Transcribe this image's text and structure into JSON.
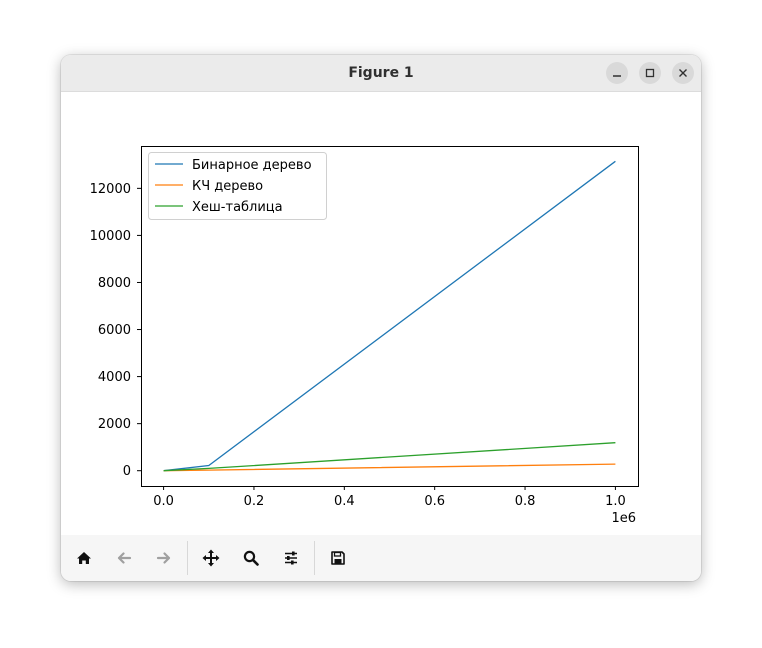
{
  "window": {
    "title": "Figure 1"
  },
  "toolbar": {
    "buttons": [
      {
        "name": "home-icon",
        "enabled": true
      },
      {
        "name": "back-icon",
        "enabled": false
      },
      {
        "name": "forward-icon",
        "enabled": false
      },
      {
        "name": "pan-icon",
        "enabled": true
      },
      {
        "name": "zoom-icon",
        "enabled": true
      },
      {
        "name": "configure-subplots-icon",
        "enabled": true
      },
      {
        "name": "save-icon",
        "enabled": true
      }
    ]
  },
  "chart_data": {
    "type": "line",
    "title": "",
    "xlabel": "",
    "ylabel": "",
    "x_offset_label": "1e6",
    "xlim": [
      -0.05,
      1.05
    ],
    "ylim": [
      -650,
      13800
    ],
    "x_ticks": [
      0.0,
      0.2,
      0.4,
      0.6,
      0.8,
      1.0
    ],
    "x_tick_labels": [
      "0.0",
      "0.2",
      "0.4",
      "0.6",
      "0.8",
      "1.0"
    ],
    "y_ticks": [
      0,
      2000,
      4000,
      6000,
      8000,
      10000,
      12000
    ],
    "y_tick_labels": [
      "0",
      "2000",
      "4000",
      "6000",
      "8000",
      "10000",
      "12000"
    ],
    "grid": false,
    "legend_position": "upper-left",
    "x": [
      0,
      0.1,
      1.0
    ],
    "series": [
      {
        "name": "Бинарное дерево",
        "color": "#1f77b4",
        "values": [
          0,
          220,
          13150
        ]
      },
      {
        "name": "КЧ дерево",
        "color": "#ff7f0e",
        "values": [
          0,
          25,
          280
        ]
      },
      {
        "name": "Хеш-таблица",
        "color": "#2ca02c",
        "values": [
          0,
          100,
          1190
        ]
      }
    ]
  }
}
